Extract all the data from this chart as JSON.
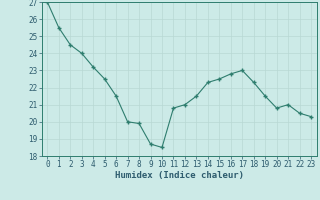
{
  "x": [
    0,
    1,
    2,
    3,
    4,
    5,
    6,
    7,
    8,
    9,
    10,
    11,
    12,
    13,
    14,
    15,
    16,
    17,
    18,
    19,
    20,
    21,
    22,
    23
  ],
  "y": [
    27.0,
    25.5,
    24.5,
    24.0,
    23.2,
    22.5,
    21.5,
    20.0,
    19.9,
    18.7,
    18.5,
    20.8,
    21.0,
    21.5,
    22.3,
    22.5,
    22.8,
    23.0,
    22.3,
    21.5,
    20.8,
    21.0,
    20.5,
    20.3
  ],
  "line_color": "#2e7d6e",
  "marker": "+",
  "bg_color": "#cceae7",
  "grid_color": "#b8d8d4",
  "axis_color": "#2e7d6e",
  "xlabel": "Humidex (Indice chaleur)",
  "ylim": [
    18,
    27
  ],
  "xlim": [
    -0.5,
    23.5
  ],
  "yticks": [
    18,
    19,
    20,
    21,
    22,
    23,
    24,
    25,
    26,
    27
  ],
  "xticks": [
    0,
    1,
    2,
    3,
    4,
    5,
    6,
    7,
    8,
    9,
    10,
    11,
    12,
    13,
    14,
    15,
    16,
    17,
    18,
    19,
    20,
    21,
    22,
    23
  ],
  "font_color": "#2e5c6e",
  "tick_fontsize": 5.5,
  "xlabel_fontsize": 6.5
}
